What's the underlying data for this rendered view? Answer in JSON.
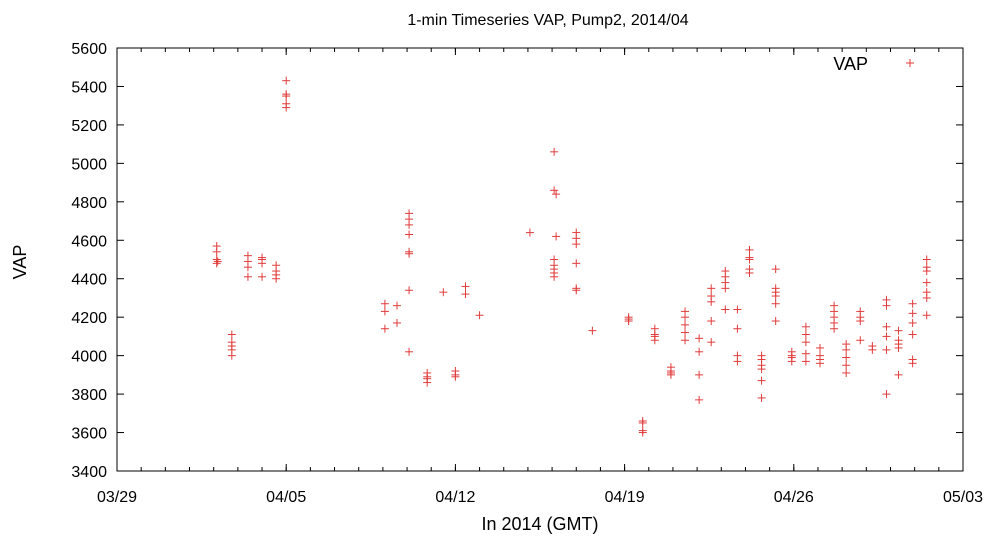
{
  "chart_data": {
    "type": "scatter",
    "title": "1-min Timeseries VAP, Pump2, 2014/04",
    "xlabel": "In 2014 (GMT)",
    "ylabel": "VAP",
    "xlim": [
      "2014-03-29",
      "2014-05-03"
    ],
    "ylim": [
      3400,
      5600
    ],
    "yticks": [
      3400,
      3600,
      3800,
      4000,
      4200,
      4400,
      4600,
      4800,
      5000,
      5200,
      5400,
      5600
    ],
    "xticks": [
      {
        "date": "2014-03-29",
        "label": "03/29"
      },
      {
        "date": "2014-04-05",
        "label": "04/05"
      },
      {
        "date": "2014-04-12",
        "label": "04/12"
      },
      {
        "date": "2014-04-19",
        "label": "04/19"
      },
      {
        "date": "2014-04-26",
        "label": "04/26"
      },
      {
        "date": "2014-05-03",
        "label": "05/03"
      }
    ],
    "marker": "+",
    "color": "#e03c3c",
    "legend": "top-right",
    "grid": false,
    "series": [
      {
        "name": "VAP",
        "points": [
          [
            "2014-04-02 03:00",
            4570
          ],
          [
            "2014-04-02 03:00",
            4540
          ],
          [
            "2014-04-02 03:00",
            4500
          ],
          [
            "2014-04-02 03:00",
            4480
          ],
          [
            "2014-04-02 04:00",
            4490
          ],
          [
            "2014-04-02 18:00",
            4110
          ],
          [
            "2014-04-02 18:00",
            4070
          ],
          [
            "2014-04-02 18:00",
            4050
          ],
          [
            "2014-04-02 18:00",
            4030
          ],
          [
            "2014-04-02 18:00",
            4000
          ],
          [
            "2014-04-03 10:00",
            4520
          ],
          [
            "2014-04-03 10:00",
            4490
          ],
          [
            "2014-04-03 10:00",
            4460
          ],
          [
            "2014-04-03 10:00",
            4410
          ],
          [
            "2014-04-04 00:00",
            4510
          ],
          [
            "2014-04-04 00:00",
            4500
          ],
          [
            "2014-04-04 00:00",
            4480
          ],
          [
            "2014-04-04 00:00",
            4410
          ],
          [
            "2014-04-04 14:00",
            4470
          ],
          [
            "2014-04-04 14:00",
            4440
          ],
          [
            "2014-04-04 14:00",
            4420
          ],
          [
            "2014-04-04 14:00",
            4400
          ],
          [
            "2014-04-05 00:00",
            5430
          ],
          [
            "2014-04-05 00:00",
            5360
          ],
          [
            "2014-04-05 00:00",
            5350
          ],
          [
            "2014-04-05 00:00",
            5310
          ],
          [
            "2014-04-05 00:00",
            5290
          ],
          [
            "2014-04-09 02:00",
            4270
          ],
          [
            "2014-04-09 02:00",
            4230
          ],
          [
            "2014-04-09 02:00",
            4140
          ],
          [
            "2014-04-09 14:00",
            4260
          ],
          [
            "2014-04-09 14:00",
            4170
          ],
          [
            "2014-04-10 02:00",
            4740
          ],
          [
            "2014-04-10 02:00",
            4710
          ],
          [
            "2014-04-10 02:00",
            4680
          ],
          [
            "2014-04-10 02:00",
            4630
          ],
          [
            "2014-04-10 02:00",
            4540
          ],
          [
            "2014-04-10 02:00",
            4530
          ],
          [
            "2014-04-10 02:00",
            4340
          ],
          [
            "2014-04-10 02:00",
            4020
          ],
          [
            "2014-04-10 20:00",
            3910
          ],
          [
            "2014-04-10 20:00",
            3890
          ],
          [
            "2014-04-10 20:00",
            3880
          ],
          [
            "2014-04-10 20:00",
            3860
          ],
          [
            "2014-04-11 12:00",
            4330
          ],
          [
            "2014-04-12 00:00",
            3920
          ],
          [
            "2014-04-12 00:00",
            3900
          ],
          [
            "2014-04-12 00:00",
            3890
          ],
          [
            "2014-04-12 10:00",
            4360
          ],
          [
            "2014-04-12 10:00",
            4320
          ],
          [
            "2014-04-13 00:00",
            4210
          ],
          [
            "2014-04-15 02:00",
            4640
          ],
          [
            "2014-04-16 02:00",
            5060
          ],
          [
            "2014-04-16 02:00",
            4860
          ],
          [
            "2014-04-16 04:00",
            4840
          ],
          [
            "2014-04-16 04:00",
            4620
          ],
          [
            "2014-04-16 02:00",
            4500
          ],
          [
            "2014-04-16 02:00",
            4470
          ],
          [
            "2014-04-16 02:00",
            4450
          ],
          [
            "2014-04-16 02:00",
            4430
          ],
          [
            "2014-04-16 02:00",
            4410
          ],
          [
            "2014-04-17 00:00",
            4640
          ],
          [
            "2014-04-17 00:00",
            4610
          ],
          [
            "2014-04-17 00:00",
            4580
          ],
          [
            "2014-04-17 00:00",
            4480
          ],
          [
            "2014-04-17 00:00",
            4350
          ],
          [
            "2014-04-17 00:00",
            4340
          ],
          [
            "2014-04-17 16:00",
            4130
          ],
          [
            "2014-04-19 04:00",
            4200
          ],
          [
            "2014-04-19 04:00",
            4190
          ],
          [
            "2014-04-19 04:00",
            4180
          ],
          [
            "2014-04-19 18:00",
            3660
          ],
          [
            "2014-04-19 18:00",
            3650
          ],
          [
            "2014-04-19 18:00",
            3610
          ],
          [
            "2014-04-19 18:00",
            3600
          ],
          [
            "2014-04-20 06:00",
            4140
          ],
          [
            "2014-04-20 06:00",
            4110
          ],
          [
            "2014-04-20 06:00",
            4100
          ],
          [
            "2014-04-20 06:00",
            4080
          ],
          [
            "2014-04-20 22:00",
            3940
          ],
          [
            "2014-04-20 22:00",
            3920
          ],
          [
            "2014-04-20 22:00",
            3910
          ],
          [
            "2014-04-20 22:00",
            3900
          ],
          [
            "2014-04-21 12:00",
            4230
          ],
          [
            "2014-04-21 12:00",
            4200
          ],
          [
            "2014-04-21 12:00",
            4160
          ],
          [
            "2014-04-21 12:00",
            4120
          ],
          [
            "2014-04-21 12:00",
            4080
          ],
          [
            "2014-04-22 02:00",
            4090
          ],
          [
            "2014-04-22 02:00",
            4020
          ],
          [
            "2014-04-22 02:00",
            3900
          ],
          [
            "2014-04-22 02:00",
            3770
          ],
          [
            "2014-04-22 14:00",
            4350
          ],
          [
            "2014-04-22 14:00",
            4310
          ],
          [
            "2014-04-22 14:00",
            4280
          ],
          [
            "2014-04-22 14:00",
            4180
          ],
          [
            "2014-04-22 14:00",
            4070
          ],
          [
            "2014-04-23 04:00",
            4440
          ],
          [
            "2014-04-23 04:00",
            4410
          ],
          [
            "2014-04-23 04:00",
            4380
          ],
          [
            "2014-04-23 04:00",
            4350
          ],
          [
            "2014-04-23 04:00",
            4240
          ],
          [
            "2014-04-23 16:00",
            4240
          ],
          [
            "2014-04-23 16:00",
            4140
          ],
          [
            "2014-04-23 16:00",
            4000
          ],
          [
            "2014-04-23 16:00",
            3970
          ],
          [
            "2014-04-24 04:00",
            4550
          ],
          [
            "2014-04-24 04:00",
            4510
          ],
          [
            "2014-04-24 04:00",
            4500
          ],
          [
            "2014-04-24 04:00",
            4450
          ],
          [
            "2014-04-24 04:00",
            4430
          ],
          [
            "2014-04-24 16:00",
            4000
          ],
          [
            "2014-04-24 16:00",
            3980
          ],
          [
            "2014-04-24 16:00",
            3950
          ],
          [
            "2014-04-24 16:00",
            3930
          ],
          [
            "2014-04-24 16:00",
            3870
          ],
          [
            "2014-04-24 16:00",
            3780
          ],
          [
            "2014-04-25 06:00",
            4450
          ],
          [
            "2014-04-25 06:00",
            4350
          ],
          [
            "2014-04-25 06:00",
            4330
          ],
          [
            "2014-04-25 06:00",
            4310
          ],
          [
            "2014-04-25 06:00",
            4270
          ],
          [
            "2014-04-25 06:00",
            4180
          ],
          [
            "2014-04-25 22:00",
            4020
          ],
          [
            "2014-04-25 22:00",
            4000
          ],
          [
            "2014-04-25 22:00",
            3990
          ],
          [
            "2014-04-25 22:00",
            3970
          ],
          [
            "2014-04-26 12:00",
            4150
          ],
          [
            "2014-04-26 12:00",
            4110
          ],
          [
            "2014-04-26 12:00",
            4070
          ],
          [
            "2014-04-26 12:00",
            4010
          ],
          [
            "2014-04-26 12:00",
            3970
          ],
          [
            "2014-04-27 02:00",
            4040
          ],
          [
            "2014-04-27 02:00",
            4000
          ],
          [
            "2014-04-27 02:00",
            3980
          ],
          [
            "2014-04-27 02:00",
            3960
          ],
          [
            "2014-04-27 16:00",
            4260
          ],
          [
            "2014-04-27 16:00",
            4230
          ],
          [
            "2014-04-27 16:00",
            4200
          ],
          [
            "2014-04-27 16:00",
            4170
          ],
          [
            "2014-04-27 16:00",
            4140
          ],
          [
            "2014-04-28 04:00",
            4060
          ],
          [
            "2014-04-28 04:00",
            4030
          ],
          [
            "2014-04-28 04:00",
            3990
          ],
          [
            "2014-04-28 04:00",
            3950
          ],
          [
            "2014-04-28 04:00",
            3910
          ],
          [
            "2014-04-28 18:00",
            4230
          ],
          [
            "2014-04-28 18:00",
            4200
          ],
          [
            "2014-04-28 18:00",
            4180
          ],
          [
            "2014-04-28 18:00",
            4080
          ],
          [
            "2014-04-29 06:00",
            4050
          ],
          [
            "2014-04-29 06:00",
            4030
          ],
          [
            "2014-04-29 20:00",
            4290
          ],
          [
            "2014-04-29 20:00",
            4260
          ],
          [
            "2014-04-29 20:00",
            4150
          ],
          [
            "2014-04-29 20:00",
            4100
          ],
          [
            "2014-04-29 20:00",
            4030
          ],
          [
            "2014-04-29 20:00",
            3800
          ],
          [
            "2014-04-30 08:00",
            4130
          ],
          [
            "2014-04-30 08:00",
            4080
          ],
          [
            "2014-04-30 08:00",
            4060
          ],
          [
            "2014-04-30 08:00",
            4040
          ],
          [
            "2014-04-30 08:00",
            3900
          ],
          [
            "2014-04-30 22:00",
            4270
          ],
          [
            "2014-04-30 22:00",
            4220
          ],
          [
            "2014-04-30 22:00",
            4170
          ],
          [
            "2014-04-30 22:00",
            4110
          ],
          [
            "2014-04-30 22:00",
            3980
          ],
          [
            "2014-04-30 22:00",
            3960
          ],
          [
            "2014-05-01 12:00",
            4500
          ],
          [
            "2014-05-01 12:00",
            4460
          ],
          [
            "2014-05-01 12:00",
            4440
          ],
          [
            "2014-05-01 12:00",
            4380
          ],
          [
            "2014-05-01 12:00",
            4330
          ],
          [
            "2014-05-01 12:00",
            4300
          ],
          [
            "2014-05-01 12:00",
            4210
          ]
        ]
      }
    ]
  }
}
